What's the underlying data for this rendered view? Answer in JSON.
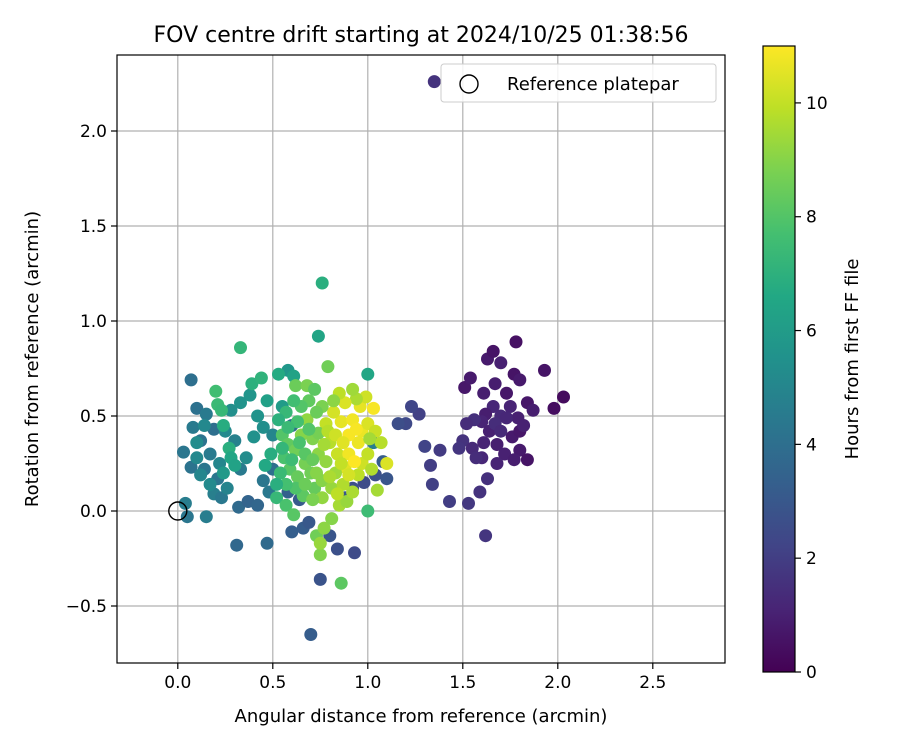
{
  "chart_data": {
    "type": "scatter",
    "title": "FOV centre drift starting at 2024/10/25 01:38:56",
    "xlabel": "Angular distance from reference (arcmin)",
    "ylabel": "Rotation from reference (arcmin)",
    "xlim": [
      -0.32,
      2.88
    ],
    "ylim": [
      -0.8,
      2.4
    ],
    "xticks": [
      "0.0",
      "0.5",
      "1.0",
      "1.5",
      "2.0",
      "2.5"
    ],
    "xtick_values": [
      0,
      0.5,
      1.0,
      1.5,
      2.0,
      2.5
    ],
    "yticks": [
      "−0.5",
      "0.0",
      "0.5",
      "1.0",
      "1.5",
      "2.0"
    ],
    "ytick_values": [
      -0.5,
      0,
      0.5,
      1.0,
      1.5,
      2.0
    ],
    "grid": true,
    "legend": {
      "location": "upper right",
      "entries": [
        "Reference platepar"
      ]
    },
    "reference_point": {
      "x": 0.0,
      "y": 0.0,
      "marker": "open-circle"
    },
    "colorbar": {
      "label": "Hours from first FF file",
      "colormap": "viridis",
      "range": [
        0,
        11
      ],
      "ticks": [
        "0",
        "2",
        "4",
        "6",
        "8",
        "10"
      ],
      "tick_values": [
        0,
        2,
        4,
        6,
        8,
        10
      ]
    },
    "points": [
      {
        "x": 1.35,
        "y": 2.26,
        "h": 1.6
      },
      {
        "x": 1.51,
        "y": 0.65,
        "h": 0.7
      },
      {
        "x": 1.54,
        "y": 0.7,
        "h": 0.8
      },
      {
        "x": 1.61,
        "y": 0.62,
        "h": 0.9
      },
      {
        "x": 1.63,
        "y": 0.8,
        "h": 0.8
      },
      {
        "x": 1.66,
        "y": 0.84,
        "h": 0.6
      },
      {
        "x": 1.7,
        "y": 0.78,
        "h": 1.0
      },
      {
        "x": 1.67,
        "y": 0.67,
        "h": 0.9
      },
      {
        "x": 1.73,
        "y": 0.62,
        "h": 0.7
      },
      {
        "x": 1.77,
        "y": 0.72,
        "h": 0.6
      },
      {
        "x": 1.78,
        "y": 0.89,
        "h": 0.5
      },
      {
        "x": 1.8,
        "y": 0.69,
        "h": 0.8
      },
      {
        "x": 1.84,
        "y": 0.57,
        "h": 0.7
      },
      {
        "x": 1.87,
        "y": 0.53,
        "h": 0.9
      },
      {
        "x": 1.93,
        "y": 0.74,
        "h": 0.6
      },
      {
        "x": 1.98,
        "y": 0.54,
        "h": 0.4
      },
      {
        "x": 2.03,
        "y": 0.6,
        "h": 0.3
      },
      {
        "x": 1.79,
        "y": 0.49,
        "h": 1.0
      },
      {
        "x": 1.75,
        "y": 0.55,
        "h": 1.1
      },
      {
        "x": 1.7,
        "y": 0.5,
        "h": 1.3
      },
      {
        "x": 1.66,
        "y": 0.55,
        "h": 1.2
      },
      {
        "x": 1.62,
        "y": 0.51,
        "h": 0.9
      },
      {
        "x": 1.6,
        "y": 0.47,
        "h": 1.1
      },
      {
        "x": 1.56,
        "y": 0.48,
        "h": 1.5
      },
      {
        "x": 1.52,
        "y": 0.46,
        "h": 1.4
      },
      {
        "x": 1.5,
        "y": 0.37,
        "h": 1.6
      },
      {
        "x": 1.48,
        "y": 0.33,
        "h": 1.7
      },
      {
        "x": 1.55,
        "y": 0.33,
        "h": 1.3
      },
      {
        "x": 1.61,
        "y": 0.36,
        "h": 1.1
      },
      {
        "x": 1.64,
        "y": 0.42,
        "h": 1.0
      },
      {
        "x": 1.68,
        "y": 0.35,
        "h": 0.9
      },
      {
        "x": 1.72,
        "y": 0.3,
        "h": 1.0
      },
      {
        "x": 1.76,
        "y": 0.39,
        "h": 0.8
      },
      {
        "x": 1.8,
        "y": 0.42,
        "h": 0.7
      },
      {
        "x": 1.82,
        "y": 0.45,
        "h": 1.0
      },
      {
        "x": 1.8,
        "y": 0.32,
        "h": 0.8
      },
      {
        "x": 1.77,
        "y": 0.27,
        "h": 0.9
      },
      {
        "x": 1.68,
        "y": 0.25,
        "h": 1.1
      },
      {
        "x": 1.6,
        "y": 0.28,
        "h": 1.2
      },
      {
        "x": 1.57,
        "y": 0.28,
        "h": 1.4
      },
      {
        "x": 1.63,
        "y": 0.17,
        "h": 1.5
      },
      {
        "x": 1.59,
        "y": 0.1,
        "h": 1.6
      },
      {
        "x": 1.53,
        "y": 0.04,
        "h": 1.8
      },
      {
        "x": 1.43,
        "y": 0.05,
        "h": 2.0
      },
      {
        "x": 1.34,
        "y": 0.14,
        "h": 2.1
      },
      {
        "x": 1.33,
        "y": 0.24,
        "h": 2.0
      },
      {
        "x": 1.38,
        "y": 0.32,
        "h": 1.9
      },
      {
        "x": 1.3,
        "y": 0.34,
        "h": 2.2
      },
      {
        "x": 1.27,
        "y": 0.51,
        "h": 2.1
      },
      {
        "x": 1.23,
        "y": 0.55,
        "h": 2.3
      },
      {
        "x": 1.2,
        "y": 0.46,
        "h": 2.4
      },
      {
        "x": 1.16,
        "y": 0.46,
        "h": 2.6
      },
      {
        "x": 1.62,
        "y": -0.13,
        "h": 1.7
      },
      {
        "x": 1.84,
        "y": 0.27,
        "h": 0.6
      },
      {
        "x": 1.73,
        "y": 0.49,
        "h": 1.2
      },
      {
        "x": 1.67,
        "y": 0.46,
        "h": 1.4
      },
      {
        "x": 1.7,
        "y": 0.42,
        "h": 1.3
      },
      {
        "x": 0.04,
        "y": 0.04,
        "h": 4.6
      },
      {
        "x": 0.05,
        "y": -0.03,
        "h": 4.3
      },
      {
        "x": 0.15,
        "y": -0.03,
        "h": 4.6
      },
      {
        "x": 0.03,
        "y": 0.31,
        "h": 4.3
      },
      {
        "x": 0.07,
        "y": 0.69,
        "h": 4.0
      },
      {
        "x": 0.1,
        "y": 0.54,
        "h": 4.1
      },
      {
        "x": 0.08,
        "y": 0.44,
        "h": 4.5
      },
      {
        "x": 0.07,
        "y": 0.23,
        "h": 4.2
      },
      {
        "x": 0.12,
        "y": 0.37,
        "h": 4.2
      },
      {
        "x": 0.15,
        "y": 0.51,
        "h": 4.5
      },
      {
        "x": 0.19,
        "y": 0.43,
        "h": 4.0
      },
      {
        "x": 0.17,
        "y": 0.3,
        "h": 4.5
      },
      {
        "x": 0.14,
        "y": 0.22,
        "h": 4.3
      },
      {
        "x": 0.21,
        "y": 0.17,
        "h": 4.3
      },
      {
        "x": 0.19,
        "y": 0.09,
        "h": 4.7
      },
      {
        "x": 0.23,
        "y": 0.07,
        "h": 4.4
      },
      {
        "x": 0.26,
        "y": 0.12,
        "h": 4.9
      },
      {
        "x": 0.22,
        "y": 0.25,
        "h": 5.0
      },
      {
        "x": 0.25,
        "y": 0.42,
        "h": 5.2
      },
      {
        "x": 0.28,
        "y": 0.53,
        "h": 5.4
      },
      {
        "x": 0.3,
        "y": 0.37,
        "h": 4.8
      },
      {
        "x": 0.33,
        "y": 0.22,
        "h": 4.5
      },
      {
        "x": 0.32,
        "y": 0.02,
        "h": 3.8
      },
      {
        "x": 0.31,
        "y": -0.18,
        "h": 3.7
      },
      {
        "x": 0.37,
        "y": 0.05,
        "h": 3.5
      },
      {
        "x": 0.42,
        "y": 0.03,
        "h": 3.6
      },
      {
        "x": 0.36,
        "y": 0.28,
        "h": 5.3
      },
      {
        "x": 0.4,
        "y": 0.39,
        "h": 5.5
      },
      {
        "x": 0.42,
        "y": 0.5,
        "h": 5.6
      },
      {
        "x": 0.45,
        "y": 0.44,
        "h": 5.4
      },
      {
        "x": 0.38,
        "y": 0.61,
        "h": 5.7
      },
      {
        "x": 0.33,
        "y": 0.57,
        "h": 5.6
      },
      {
        "x": 0.39,
        "y": 0.67,
        "h": 7.0
      },
      {
        "x": 0.44,
        "y": 0.7,
        "h": 7.1
      },
      {
        "x": 0.33,
        "y": 0.86,
        "h": 7.2
      },
      {
        "x": 0.2,
        "y": 0.63,
        "h": 7.6
      },
      {
        "x": 0.21,
        "y": 0.56,
        "h": 7.4
      },
      {
        "x": 0.23,
        "y": 0.53,
        "h": 7.3
      },
      {
        "x": 0.24,
        "y": 0.45,
        "h": 6.8
      },
      {
        "x": 0.27,
        "y": 0.33,
        "h": 6.9
      },
      {
        "x": 0.28,
        "y": 0.28,
        "h": 6.5
      },
      {
        "x": 0.3,
        "y": 0.24,
        "h": 6.3
      },
      {
        "x": 0.24,
        "y": 0.2,
        "h": 5.9
      },
      {
        "x": 0.17,
        "y": 0.14,
        "h": 5.2
      },
      {
        "x": 0.12,
        "y": 0.19,
        "h": 5.0
      },
      {
        "x": 0.1,
        "y": 0.28,
        "h": 5.1
      },
      {
        "x": 0.1,
        "y": 0.36,
        "h": 5.3
      },
      {
        "x": 0.14,
        "y": 0.45,
        "h": 5.1
      },
      {
        "x": 0.45,
        "y": 0.16,
        "h": 4.3
      },
      {
        "x": 0.47,
        "y": -0.17,
        "h": 3.8
      },
      {
        "x": 0.48,
        "y": 0.1,
        "h": 4.4
      },
      {
        "x": 0.5,
        "y": 0.22,
        "h": 4.0
      },
      {
        "x": 0.5,
        "y": 0.4,
        "h": 5.0
      },
      {
        "x": 0.47,
        "y": 0.58,
        "h": 6.2
      },
      {
        "x": 0.55,
        "y": 0.55,
        "h": 6.0
      },
      {
        "x": 0.58,
        "y": 0.74,
        "h": 5.8
      },
      {
        "x": 0.61,
        "y": 0.71,
        "h": 6.3
      },
      {
        "x": 0.62,
        "y": 0.66,
        "h": 8.5
      },
      {
        "x": 0.53,
        "y": 0.72,
        "h": 6.7
      },
      {
        "x": 0.74,
        "y": 0.92,
        "h": 6.4
      },
      {
        "x": 0.76,
        "y": 1.2,
        "h": 6.9
      },
      {
        "x": 0.79,
        "y": 0.76,
        "h": 8.6
      },
      {
        "x": 0.68,
        "y": 0.66,
        "h": 8.8
      },
      {
        "x": 0.72,
        "y": 0.64,
        "h": 8.2
      },
      {
        "x": 0.58,
        "y": 0.1,
        "h": 3.4
      },
      {
        "x": 0.64,
        "y": 0.06,
        "h": 3.1
      },
      {
        "x": 0.66,
        "y": -0.09,
        "h": 3.2
      },
      {
        "x": 0.6,
        "y": -0.11,
        "h": 3.3
      },
      {
        "x": 0.69,
        "y": -0.06,
        "h": 3.0
      },
      {
        "x": 0.75,
        "y": -0.36,
        "h": 2.8
      },
      {
        "x": 0.7,
        "y": -0.65,
        "h": 3.2
      },
      {
        "x": 0.8,
        "y": -0.13,
        "h": 2.9
      },
      {
        "x": 0.84,
        "y": -0.2,
        "h": 2.7
      },
      {
        "x": 0.93,
        "y": -0.22,
        "h": 2.5
      },
      {
        "x": 0.88,
        "y": 0.07,
        "h": 3.0
      },
      {
        "x": 0.92,
        "y": 0.12,
        "h": 2.7
      },
      {
        "x": 0.98,
        "y": 0.15,
        "h": 2.5
      },
      {
        "x": 1.04,
        "y": 0.19,
        "h": 2.7
      },
      {
        "x": 1.1,
        "y": 0.17,
        "h": 2.9
      },
      {
        "x": 1.08,
        "y": 0.26,
        "h": 3.2
      },
      {
        "x": 1.03,
        "y": 0.36,
        "h": 4.6
      },
      {
        "x": 1.0,
        "y": 0.72,
        "h": 6.5
      },
      {
        "x": 1.0,
        "y": 0.0,
        "h": 7.5
      },
      {
        "x": 0.6,
        "y": 0.45,
        "h": 4.0
      },
      {
        "x": 0.55,
        "y": 0.4,
        "h": 8.0
      },
      {
        "x": 0.58,
        "y": 0.35,
        "h": 8.3
      },
      {
        "x": 0.62,
        "y": 0.32,
        "h": 8.6
      },
      {
        "x": 0.56,
        "y": 0.28,
        "h": 7.8
      },
      {
        "x": 0.59,
        "y": 0.22,
        "h": 8.1
      },
      {
        "x": 0.63,
        "y": 0.18,
        "h": 8.4
      },
      {
        "x": 0.67,
        "y": 0.25,
        "h": 8.7
      },
      {
        "x": 0.65,
        "y": 0.4,
        "h": 9.0
      },
      {
        "x": 0.68,
        "y": 0.48,
        "h": 9.2
      },
      {
        "x": 0.71,
        "y": 0.38,
        "h": 8.9
      },
      {
        "x": 0.74,
        "y": 0.3,
        "h": 9.1
      },
      {
        "x": 0.7,
        "y": 0.2,
        "h": 8.6
      },
      {
        "x": 0.72,
        "y": 0.12,
        "h": 8.4
      },
      {
        "x": 0.66,
        "y": 0.08,
        "h": 8.2
      },
      {
        "x": 0.62,
        "y": 0.12,
        "h": 7.9
      },
      {
        "x": 0.57,
        "y": 0.14,
        "h": 7.7
      },
      {
        "x": 0.54,
        "y": 0.2,
        "h": 7.4
      },
      {
        "x": 0.52,
        "y": 0.07,
        "h": 7.3
      },
      {
        "x": 0.57,
        "y": 0.03,
        "h": 7.8
      },
      {
        "x": 0.61,
        "y": -0.02,
        "h": 8.1
      },
      {
        "x": 0.73,
        "y": -0.13,
        "h": 8.6
      },
      {
        "x": 0.77,
        "y": -0.09,
        "h": 9.1
      },
      {
        "x": 0.75,
        "y": -0.23,
        "h": 8.9
      },
      {
        "x": 0.75,
        "y": -0.17,
        "h": 9.3
      },
      {
        "x": 0.86,
        "y": -0.38,
        "h": 8.2
      },
      {
        "x": 0.81,
        "y": -0.04,
        "h": 9.0
      },
      {
        "x": 0.85,
        "y": 0.03,
        "h": 9.5
      },
      {
        "x": 0.89,
        "y": 0.05,
        "h": 9.3
      },
      {
        "x": 0.92,
        "y": 0.1,
        "h": 9.6
      },
      {
        "x": 0.95,
        "y": 0.19,
        "h": 9.9
      },
      {
        "x": 0.97,
        "y": 0.25,
        "h": 10.2
      },
      {
        "x": 1.0,
        "y": 0.3,
        "h": 10.0
      },
      {
        "x": 1.02,
        "y": 0.22,
        "h": 9.7
      },
      {
        "x": 1.05,
        "y": 0.11,
        "h": 9.5
      },
      {
        "x": 1.1,
        "y": 0.25,
        "h": 10.4
      },
      {
        "x": 0.95,
        "y": 0.36,
        "h": 10.7
      },
      {
        "x": 0.9,
        "y": 0.4,
        "h": 10.9
      },
      {
        "x": 0.86,
        "y": 0.47,
        "h": 10.6
      },
      {
        "x": 0.82,
        "y": 0.52,
        "h": 10.3
      },
      {
        "x": 0.78,
        "y": 0.46,
        "h": 10.0
      },
      {
        "x": 0.8,
        "y": 0.36,
        "h": 9.8
      },
      {
        "x": 0.84,
        "y": 0.3,
        "h": 10.1
      },
      {
        "x": 0.88,
        "y": 0.23,
        "h": 10.5
      },
      {
        "x": 0.83,
        "y": 0.2,
        "h": 9.4
      },
      {
        "x": 0.78,
        "y": 0.26,
        "h": 9.2
      },
      {
        "x": 0.76,
        "y": 0.16,
        "h": 9.0
      },
      {
        "x": 0.81,
        "y": 0.12,
        "h": 9.3
      },
      {
        "x": 0.87,
        "y": 0.14,
        "h": 9.7
      },
      {
        "x": 0.92,
        "y": 0.48,
        "h": 10.8
      },
      {
        "x": 0.96,
        "y": 0.55,
        "h": 10.6
      },
      {
        "x": 0.99,
        "y": 0.6,
        "h": 10.2
      },
      {
        "x": 1.03,
        "y": 0.54,
        "h": 10.9
      },
      {
        "x": 0.94,
        "y": 0.59,
        "h": 9.6
      },
      {
        "x": 0.88,
        "y": 0.57,
        "h": 10.4
      },
      {
        "x": 0.85,
        "y": 0.62,
        "h": 9.9
      },
      {
        "x": 0.92,
        "y": 0.64,
        "h": 9.4
      },
      {
        "x": 0.82,
        "y": 0.58,
        "h": 9.1
      },
      {
        "x": 0.76,
        "y": 0.55,
        "h": 8.8
      },
      {
        "x": 0.73,
        "y": 0.52,
        "h": 8.5
      },
      {
        "x": 0.69,
        "y": 0.58,
        "h": 8.3
      },
      {
        "x": 0.65,
        "y": 0.55,
        "h": 8.0
      },
      {
        "x": 0.61,
        "y": 0.58,
        "h": 7.6
      },
      {
        "x": 0.57,
        "y": 0.52,
        "h": 7.3
      },
      {
        "x": 0.53,
        "y": 0.48,
        "h": 7.0
      },
      {
        "x": 0.49,
        "y": 0.3,
        "h": 6.8
      },
      {
        "x": 0.46,
        "y": 0.24,
        "h": 6.6
      },
      {
        "x": 0.52,
        "y": 0.14,
        "h": 6.9
      },
      {
        "x": 0.55,
        "y": 0.33,
        "h": 7.2
      },
      {
        "x": 0.6,
        "y": 0.27,
        "h": 7.5
      },
      {
        "x": 0.64,
        "y": 0.36,
        "h": 7.8
      },
      {
        "x": 0.67,
        "y": 0.3,
        "h": 8.1
      },
      {
        "x": 0.71,
        "y": 0.27,
        "h": 8.4
      },
      {
        "x": 0.74,
        "y": 0.41,
        "h": 8.7
      },
      {
        "x": 0.77,
        "y": 0.35,
        "h": 9.5
      },
      {
        "x": 0.79,
        "y": 0.42,
        "h": 9.8
      },
      {
        "x": 0.83,
        "y": 0.4,
        "h": 10.2
      },
      {
        "x": 0.87,
        "y": 0.36,
        "h": 10.5
      },
      {
        "x": 0.9,
        "y": 0.3,
        "h": 10.8
      },
      {
        "x": 0.93,
        "y": 0.26,
        "h": 11.0
      },
      {
        "x": 0.97,
        "y": 0.42,
        "h": 10.7
      },
      {
        "x": 1.0,
        "y": 0.46,
        "h": 10.4
      },
      {
        "x": 1.04,
        "y": 0.42,
        "h": 10.1
      },
      {
        "x": 1.07,
        "y": 0.36,
        "h": 9.8
      },
      {
        "x": 1.01,
        "y": 0.38,
        "h": 9.5
      },
      {
        "x": 0.69,
        "y": 0.43,
        "h": 8.0
      },
      {
        "x": 0.63,
        "y": 0.47,
        "h": 7.7
      },
      {
        "x": 0.58,
        "y": 0.44,
        "h": 7.4
      },
      {
        "x": 0.73,
        "y": 0.2,
        "h": 9.0
      },
      {
        "x": 0.76,
        "y": 0.07,
        "h": 9.2
      },
      {
        "x": 0.8,
        "y": 0.18,
        "h": 9.6
      },
      {
        "x": 0.84,
        "y": 0.09,
        "h": 9.9
      },
      {
        "x": 0.71,
        "y": 0.06,
        "h": 8.8
      },
      {
        "x": 0.67,
        "y": 0.14,
        "h": 8.5
      },
      {
        "x": 0.86,
        "y": 0.25,
        "h": 10.0
      },
      {
        "x": 0.9,
        "y": 0.19,
        "h": 10.3
      },
      {
        "x": 0.94,
        "y": 0.43,
        "h": 10.9
      }
    ]
  }
}
